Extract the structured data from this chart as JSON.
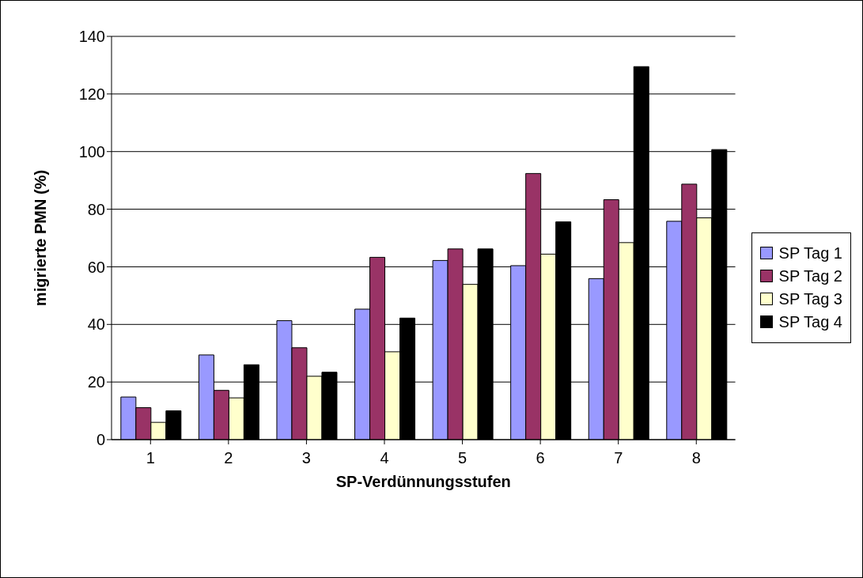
{
  "chart_data": {
    "type": "bar",
    "xlabel": "SP-Verdünnungsstufen",
    "ylabel": "migrierte PMN (%)",
    "categories": [
      "1",
      "2",
      "3",
      "4",
      "5",
      "6",
      "7",
      "8"
    ],
    "series": [
      {
        "name": "SP Tag 1",
        "color": "#9999ff",
        "values": [
          14.8,
          29.4,
          41.3,
          45.3,
          62.2,
          60.4,
          55.9,
          75.8
        ]
      },
      {
        "name": "SP Tag 2",
        "color": "#993366",
        "values": [
          11.1,
          17.1,
          31.9,
          63.3,
          66.2,
          92.4,
          83.3,
          88.7
        ]
      },
      {
        "name": "SP Tag 3",
        "color": "#ffffcc",
        "values": [
          6,
          14.5,
          22,
          30.5,
          53.9,
          64.4,
          68.4,
          77
        ]
      },
      {
        "name": "SP Tag 4",
        "color": "#000000",
        "values": [
          10,
          26,
          23.4,
          42.2,
          66.2,
          75.6,
          129.5,
          100.7
        ]
      }
    ],
    "ylim": [
      0,
      140
    ],
    "yticks": [
      0,
      20,
      40,
      60,
      80,
      100,
      120,
      140
    ],
    "grid": "y",
    "legend": "right"
  }
}
